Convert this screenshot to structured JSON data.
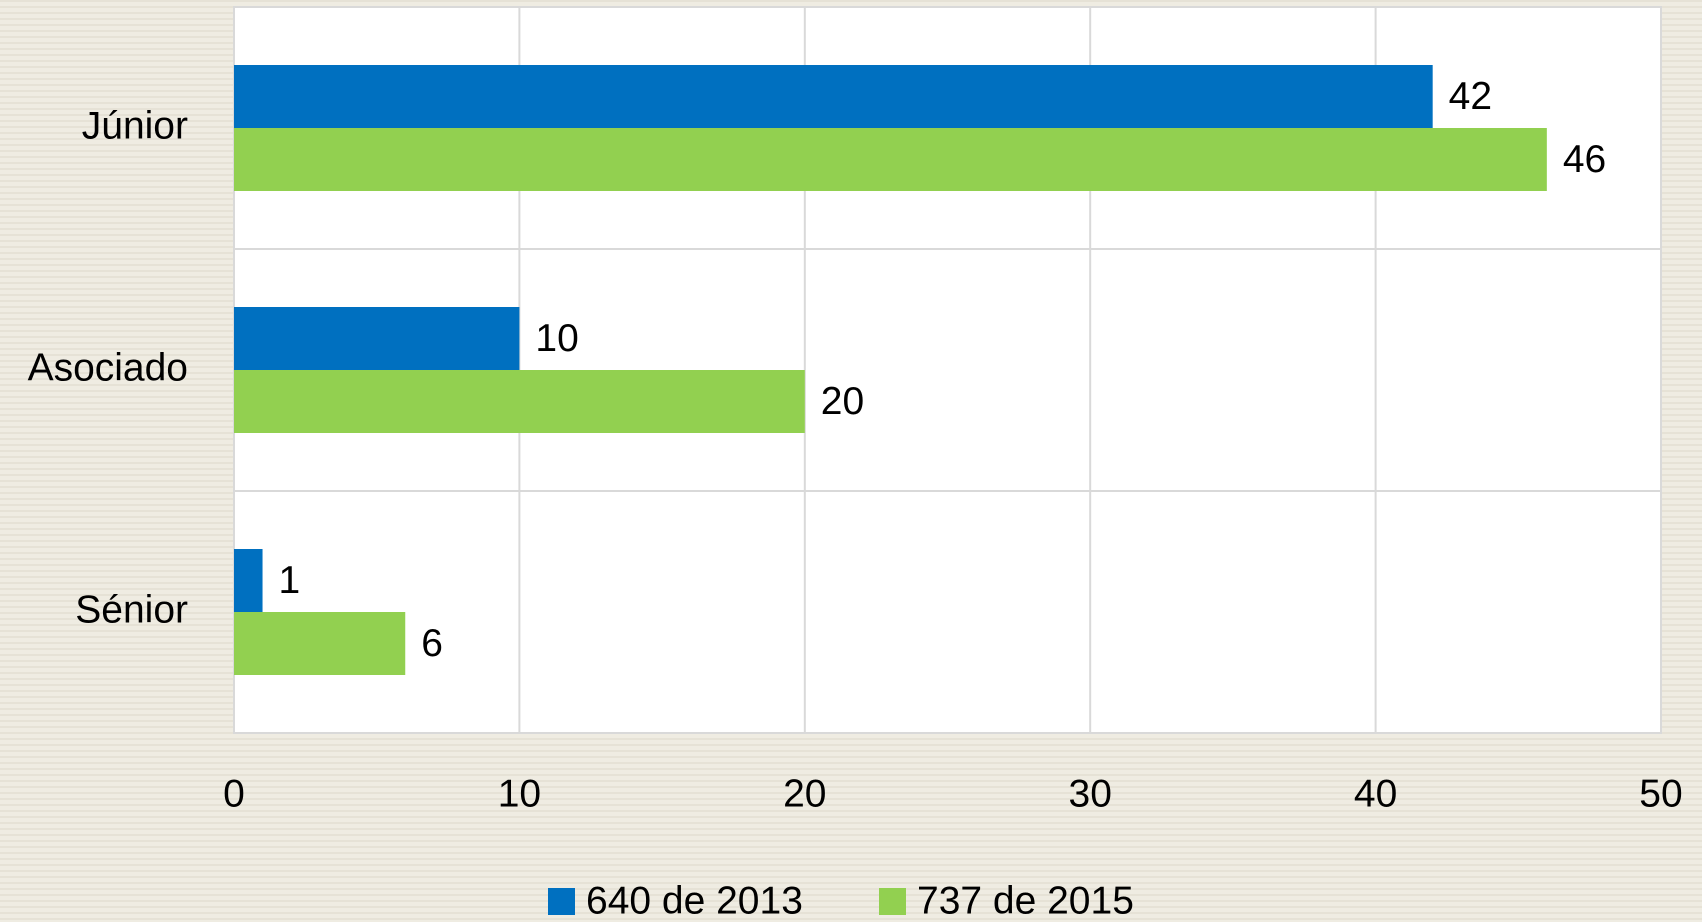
{
  "chart_data": {
    "type": "bar",
    "orientation": "horizontal",
    "categories": [
      "Júnior",
      "Asociado",
      "Sénior"
    ],
    "series": [
      {
        "name": "640 de 2013",
        "color": "#0070c0",
        "values": [
          42,
          10,
          1
        ]
      },
      {
        "name": "737 de 2015",
        "color": "#92d050",
        "values": [
          46,
          20,
          6
        ]
      }
    ],
    "xlim": [
      0,
      50
    ],
    "xticks": [
      0,
      10,
      20,
      30,
      40,
      50
    ],
    "grid": true,
    "legend": "bottom"
  }
}
